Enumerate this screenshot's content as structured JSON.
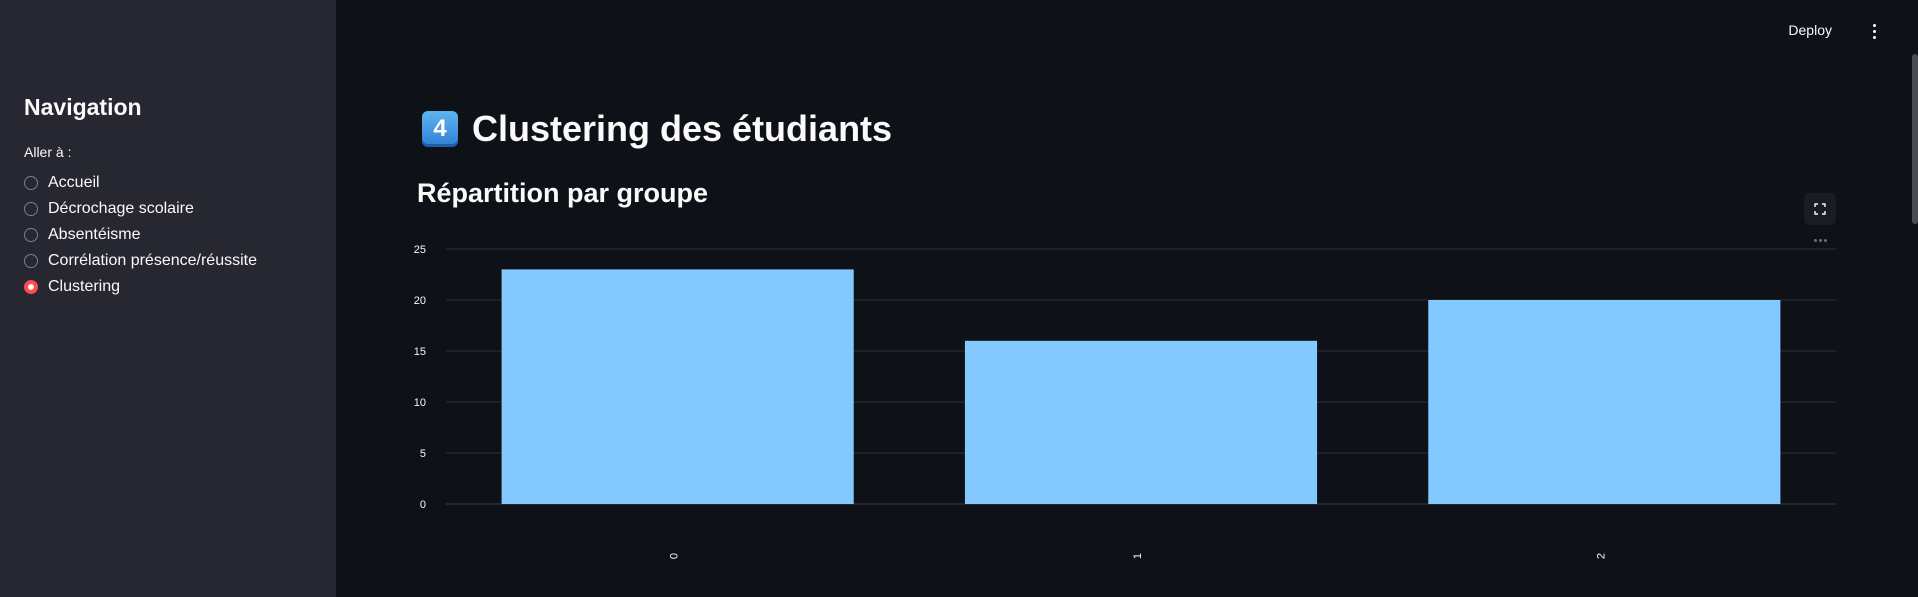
{
  "sidebar": {
    "title": "Navigation",
    "radio_label": "Aller à :",
    "options": [
      {
        "label": "Accueil",
        "selected": false
      },
      {
        "label": "Décrochage scolaire",
        "selected": false
      },
      {
        "label": "Absentéisme",
        "selected": false
      },
      {
        "label": "Corrélation présence/réussite",
        "selected": false
      },
      {
        "label": "Clustering",
        "selected": true
      }
    ]
  },
  "header": {
    "deploy_label": "Deploy"
  },
  "main": {
    "title_emoji": "4",
    "title": "Clustering des étudiants",
    "section_title": "Répartition par groupe"
  },
  "colors": {
    "bar": "#83c9ff",
    "accent": "#ff4b4b",
    "background": "#0e1117",
    "sidebar": "#262730"
  },
  "chart_data": {
    "type": "bar",
    "categories": [
      "0",
      "1",
      "2"
    ],
    "values": [
      23,
      16,
      20
    ],
    "title": "",
    "xlabel": "",
    "ylabel": "",
    "ylim": [
      0,
      25
    ],
    "yticks": [
      0,
      5,
      10,
      15,
      20,
      25
    ],
    "grid": true
  }
}
